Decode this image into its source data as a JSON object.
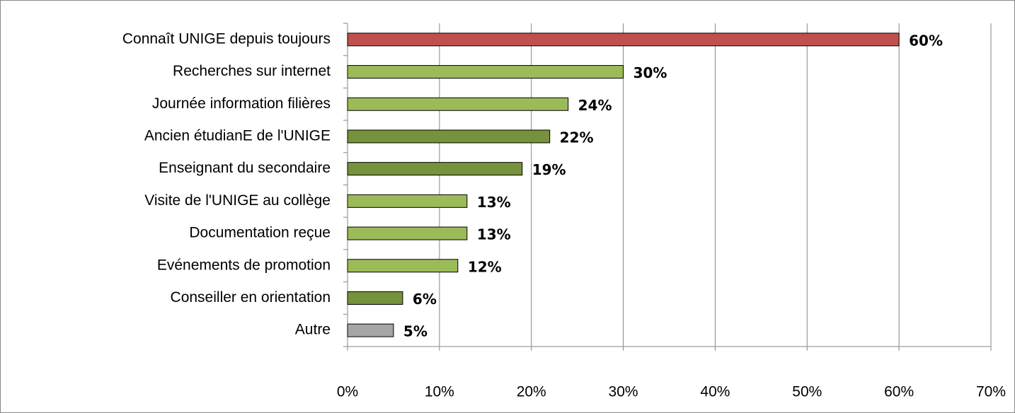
{
  "chart_data": {
    "type": "bar",
    "orientation": "horizontal",
    "categories": [
      "Connaît UNIGE depuis toujours",
      "Recherches sur internet",
      "Journée information filières",
      "Ancien étudianE de l'UNIGE",
      "Enseignant du secondaire",
      "Visite de l'UNIGE au collège",
      "Documentation reçue",
      "Evénements de promotion",
      "Conseiller en orientation",
      "Autre"
    ],
    "values": [
      60,
      30,
      24,
      22,
      19,
      13,
      13,
      12,
      6,
      5
    ],
    "value_labels": [
      "60%",
      "30%",
      "24%",
      "22%",
      "19%",
      "13%",
      "13%",
      "12%",
      "6%",
      "5%"
    ],
    "colors": [
      "#c0504d",
      "#9bbb59",
      "#9bbb59",
      "#76923c",
      "#76923c",
      "#9bbb59",
      "#9bbb59",
      "#9bbb59",
      "#76923c",
      "#a6a6a6"
    ],
    "xlim": [
      0,
      70
    ],
    "xticks": [
      {
        "value": 0,
        "label": "0%"
      },
      {
        "value": 10,
        "label": "10%"
      },
      {
        "value": 20,
        "label": "20%"
      },
      {
        "value": 30,
        "label": "30%"
      },
      {
        "value": 40,
        "label": "40%"
      },
      {
        "value": 50,
        "label": "50%"
      },
      {
        "value": 60,
        "label": "60%"
      },
      {
        "value": 70,
        "label": "70%"
      }
    ],
    "grid": true
  }
}
